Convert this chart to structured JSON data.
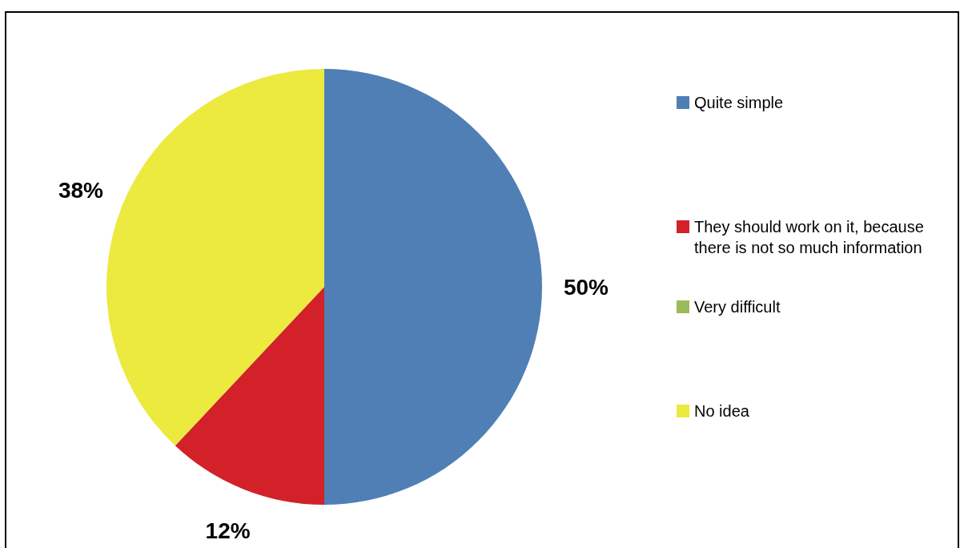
{
  "chart_data": {
    "type": "pie",
    "categories": [
      "Quite simple",
      "They should work on it, because there is not so much information",
      "Very difficult",
      "No idea"
    ],
    "values": [
      50,
      12,
      0,
      38
    ],
    "colors": [
      "#4f7fb5",
      "#d22129",
      "#9bbb59",
      "#ece93f"
    ],
    "value_labels": [
      "50%",
      "12%",
      null,
      "38%"
    ],
    "legend": "right"
  }
}
